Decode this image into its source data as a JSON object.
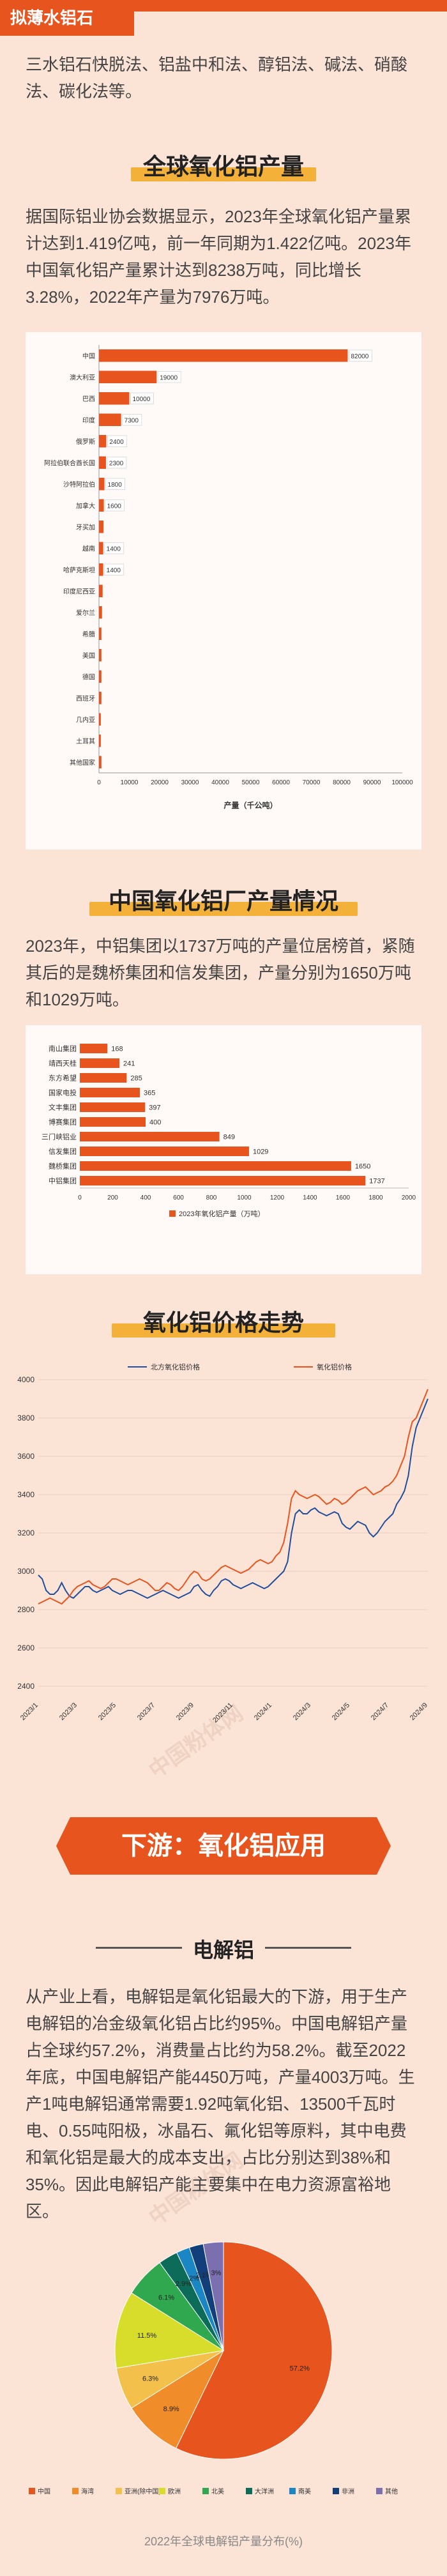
{
  "tag": {
    "label": "拟薄水铝石"
  },
  "intro": {
    "text": "三水铝石快脱法、铝盐中和法、醇铝法、碱法、硝酸法、碳化法等。"
  },
  "section1": {
    "title": "全球氧化铝产量",
    "text": "据国际铝业协会数据显示，2023年全球氧化铝产量累计达到1.419亿吨，前一年同期为1.422亿吨。2023年中国氧化铝产量累计达到8238万吨，同比增长3.28%，2022年产量为7976万吨。"
  },
  "section2": {
    "title": "中国氧化铝厂产量情况",
    "text": "2023年，中铝集团以1737万吨的产量位居榜首，紧随其后的是魏桥集团和信发集团，产量分别为1650万吨和1029万吨。"
  },
  "section3": {
    "title": "氧化铝价格走势"
  },
  "banner": {
    "label": "下游：氧化铝应用"
  },
  "section4": {
    "subtitle": "电解铝",
    "text": "从产业上看，电解铝是氧化铝最大的下游，用于生产电解铝的冶金级氧化铝占比约95%。中国电解铝产量占全球约57.2%，消费量占比约为58.2%。截至2022年底，中国电解铝产能4450万吨，产量4003万吨。生产1吨电解铝通常需要1.92吨氧化铝、13500千瓦时电、0.55吨阳极，冰晶石、氟化铝等原料，其中电费和氧化铝是最大的成本支出，占比分别达到38%和35%。因此电解铝产能主要集中在电力资源富裕地区。"
  },
  "watermark": {
    "text": "中国粉体网"
  },
  "colors": {
    "accent": "#e8541e",
    "highlight": "#f3b13a"
  },
  "chart_data": [
    {
      "type": "bar",
      "orientation": "horizontal",
      "categories": [
        "中国",
        "澳大利亚",
        "巴西",
        "印度",
        "俄罗斯",
        "阿拉伯联合酋长国",
        "沙特阿拉伯",
        "加拿大",
        "牙买加",
        "越南",
        "哈萨克斯坦",
        "印度尼西亚",
        "爱尔兰",
        "希腊",
        "美国",
        "德国",
        "西班牙",
        "几内亚",
        "土耳其",
        "其他国家"
      ],
      "values": [
        82000,
        19000,
        10000,
        7300,
        2400,
        2300,
        1800,
        1600,
        1500,
        1400,
        1400,
        1200,
        1000,
        800,
        800,
        800,
        800,
        600,
        600,
        800
      ],
      "data_labels": [
        "82000",
        "19000",
        "10000",
        "7300",
        "2400",
        "2300",
        "1800",
        "1600",
        "",
        "1400",
        "1400",
        "",
        "",
        "",
        "",
        "",
        "",
        "",
        "",
        ""
      ],
      "xlabel": "产量（千公吨）",
      "xlim": [
        0,
        100000
      ],
      "xticks": [
        "0",
        "10000",
        "20000",
        "30000",
        "40000",
        "50000",
        "60000",
        "70000",
        "80000",
        "90000",
        "100000"
      ]
    },
    {
      "type": "bar",
      "orientation": "horizontal",
      "categories": [
        "南山集团",
        "靖西天桂",
        "东方希望",
        "国家电投",
        "文丰集团",
        "博赛集团",
        "三门峡铝业",
        "信发集团",
        "魏桥集团",
        "中铝集团"
      ],
      "values": [
        168,
        241,
        285,
        365,
        397,
        400,
        849,
        1029,
        1650,
        1737
      ],
      "xlim": [
        0,
        2000
      ],
      "xticks": [
        "0",
        "200",
        "400",
        "600",
        "800",
        "1000",
        "1200",
        "1400",
        "1600",
        "1800",
        "2000"
      ],
      "legend": "2023年氧化铝产量（万吨）"
    },
    {
      "type": "line",
      "series": [
        {
          "name": "北方氧化铝价格",
          "values": [
            2980,
            2960,
            2900,
            2880,
            2880,
            2900,
            2940,
            2900,
            2870,
            2860,
            2880,
            2900,
            2920,
            2920,
            2900,
            2890,
            2900,
            2910,
            2920,
            2900,
            2890,
            2880,
            2890,
            2900,
            2900,
            2890,
            2880,
            2870,
            2860,
            2870,
            2880,
            2890,
            2900,
            2890,
            2880,
            2870,
            2860,
            2870,
            2880,
            2890,
            2920,
            2930,
            2900,
            2880,
            2870,
            2900,
            2920,
            2950,
            2960,
            2950,
            2930,
            2920,
            2910,
            2920,
            2930,
            2940,
            2930,
            2920,
            2910,
            2920,
            2940,
            2960,
            2980,
            3000,
            3050,
            3200,
            3300,
            3320,
            3300,
            3300,
            3320,
            3330,
            3310,
            3300,
            3290,
            3300,
            3310,
            3300,
            3250,
            3230,
            3220,
            3240,
            3260,
            3250,
            3240,
            3200,
            3180,
            3200,
            3230,
            3260,
            3280,
            3300,
            3350,
            3380,
            3420,
            3500,
            3650,
            3750,
            3800,
            3850,
            3900
          ]
        },
        {
          "name": "氧化铝价格",
          "values": [
            2830,
            2840,
            2850,
            2860,
            2850,
            2840,
            2830,
            2850,
            2870,
            2900,
            2920,
            2930,
            2940,
            2950,
            2930,
            2920,
            2910,
            2920,
            2940,
            2960,
            2960,
            2950,
            2940,
            2930,
            2940,
            2950,
            2960,
            2950,
            2940,
            2920,
            2900,
            2900,
            2920,
            2940,
            2930,
            2910,
            2900,
            2920,
            2950,
            2980,
            3000,
            2990,
            2960,
            2950,
            2960,
            2980,
            3000,
            3020,
            3030,
            3020,
            3010,
            3000,
            2990,
            3000,
            3010,
            3030,
            3050,
            3060,
            3050,
            3040,
            3050,
            3080,
            3100,
            3150,
            3250,
            3380,
            3420,
            3400,
            3390,
            3380,
            3390,
            3400,
            3390,
            3370,
            3350,
            3360,
            3380,
            3370,
            3350,
            3360,
            3380,
            3400,
            3420,
            3430,
            3440,
            3420,
            3400,
            3410,
            3420,
            3440,
            3450,
            3470,
            3500,
            3550,
            3600,
            3700,
            3780,
            3800,
            3850,
            3900,
            3950
          ]
        }
      ],
      "ylim": [
        2400,
        4000
      ],
      "yticks": [
        "2400",
        "2600",
        "2800",
        "3000",
        "3200",
        "3400",
        "3600",
        "3800",
        "4000"
      ],
      "xticks": [
        "2023/1",
        "2023/3",
        "2023/5",
        "2023/7",
        "2023/9",
        "2023/11",
        "2024/1",
        "2024/3",
        "2024/5",
        "2024/7",
        "2024/9"
      ]
    },
    {
      "type": "pie",
      "categories": [
        "中国",
        "海湾",
        "亚洲(除中国)",
        "欧洲",
        "北美",
        "大洋洲",
        "南美",
        "非洲",
        "其他"
      ],
      "values": [
        57.2,
        8.9,
        6.3,
        11.5,
        6.1,
        2.9,
        2.0,
        2.1,
        3.0
      ],
      "data_labels": [
        "57.2%",
        "8.9%",
        "6.3%",
        "11.5%",
        "6.1%",
        "2.9%",
        "2%",
        "2.1%",
        "3%"
      ],
      "colors": [
        "#e8541e",
        "#f08c2a",
        "#f3c14b",
        "#d8dc2a",
        "#2fa84f",
        "#0d6b5a",
        "#1a86c4",
        "#123f7a",
        "#7c6fb0"
      ],
      "title": "2022年全球电解铝产量分布(%)"
    }
  ]
}
